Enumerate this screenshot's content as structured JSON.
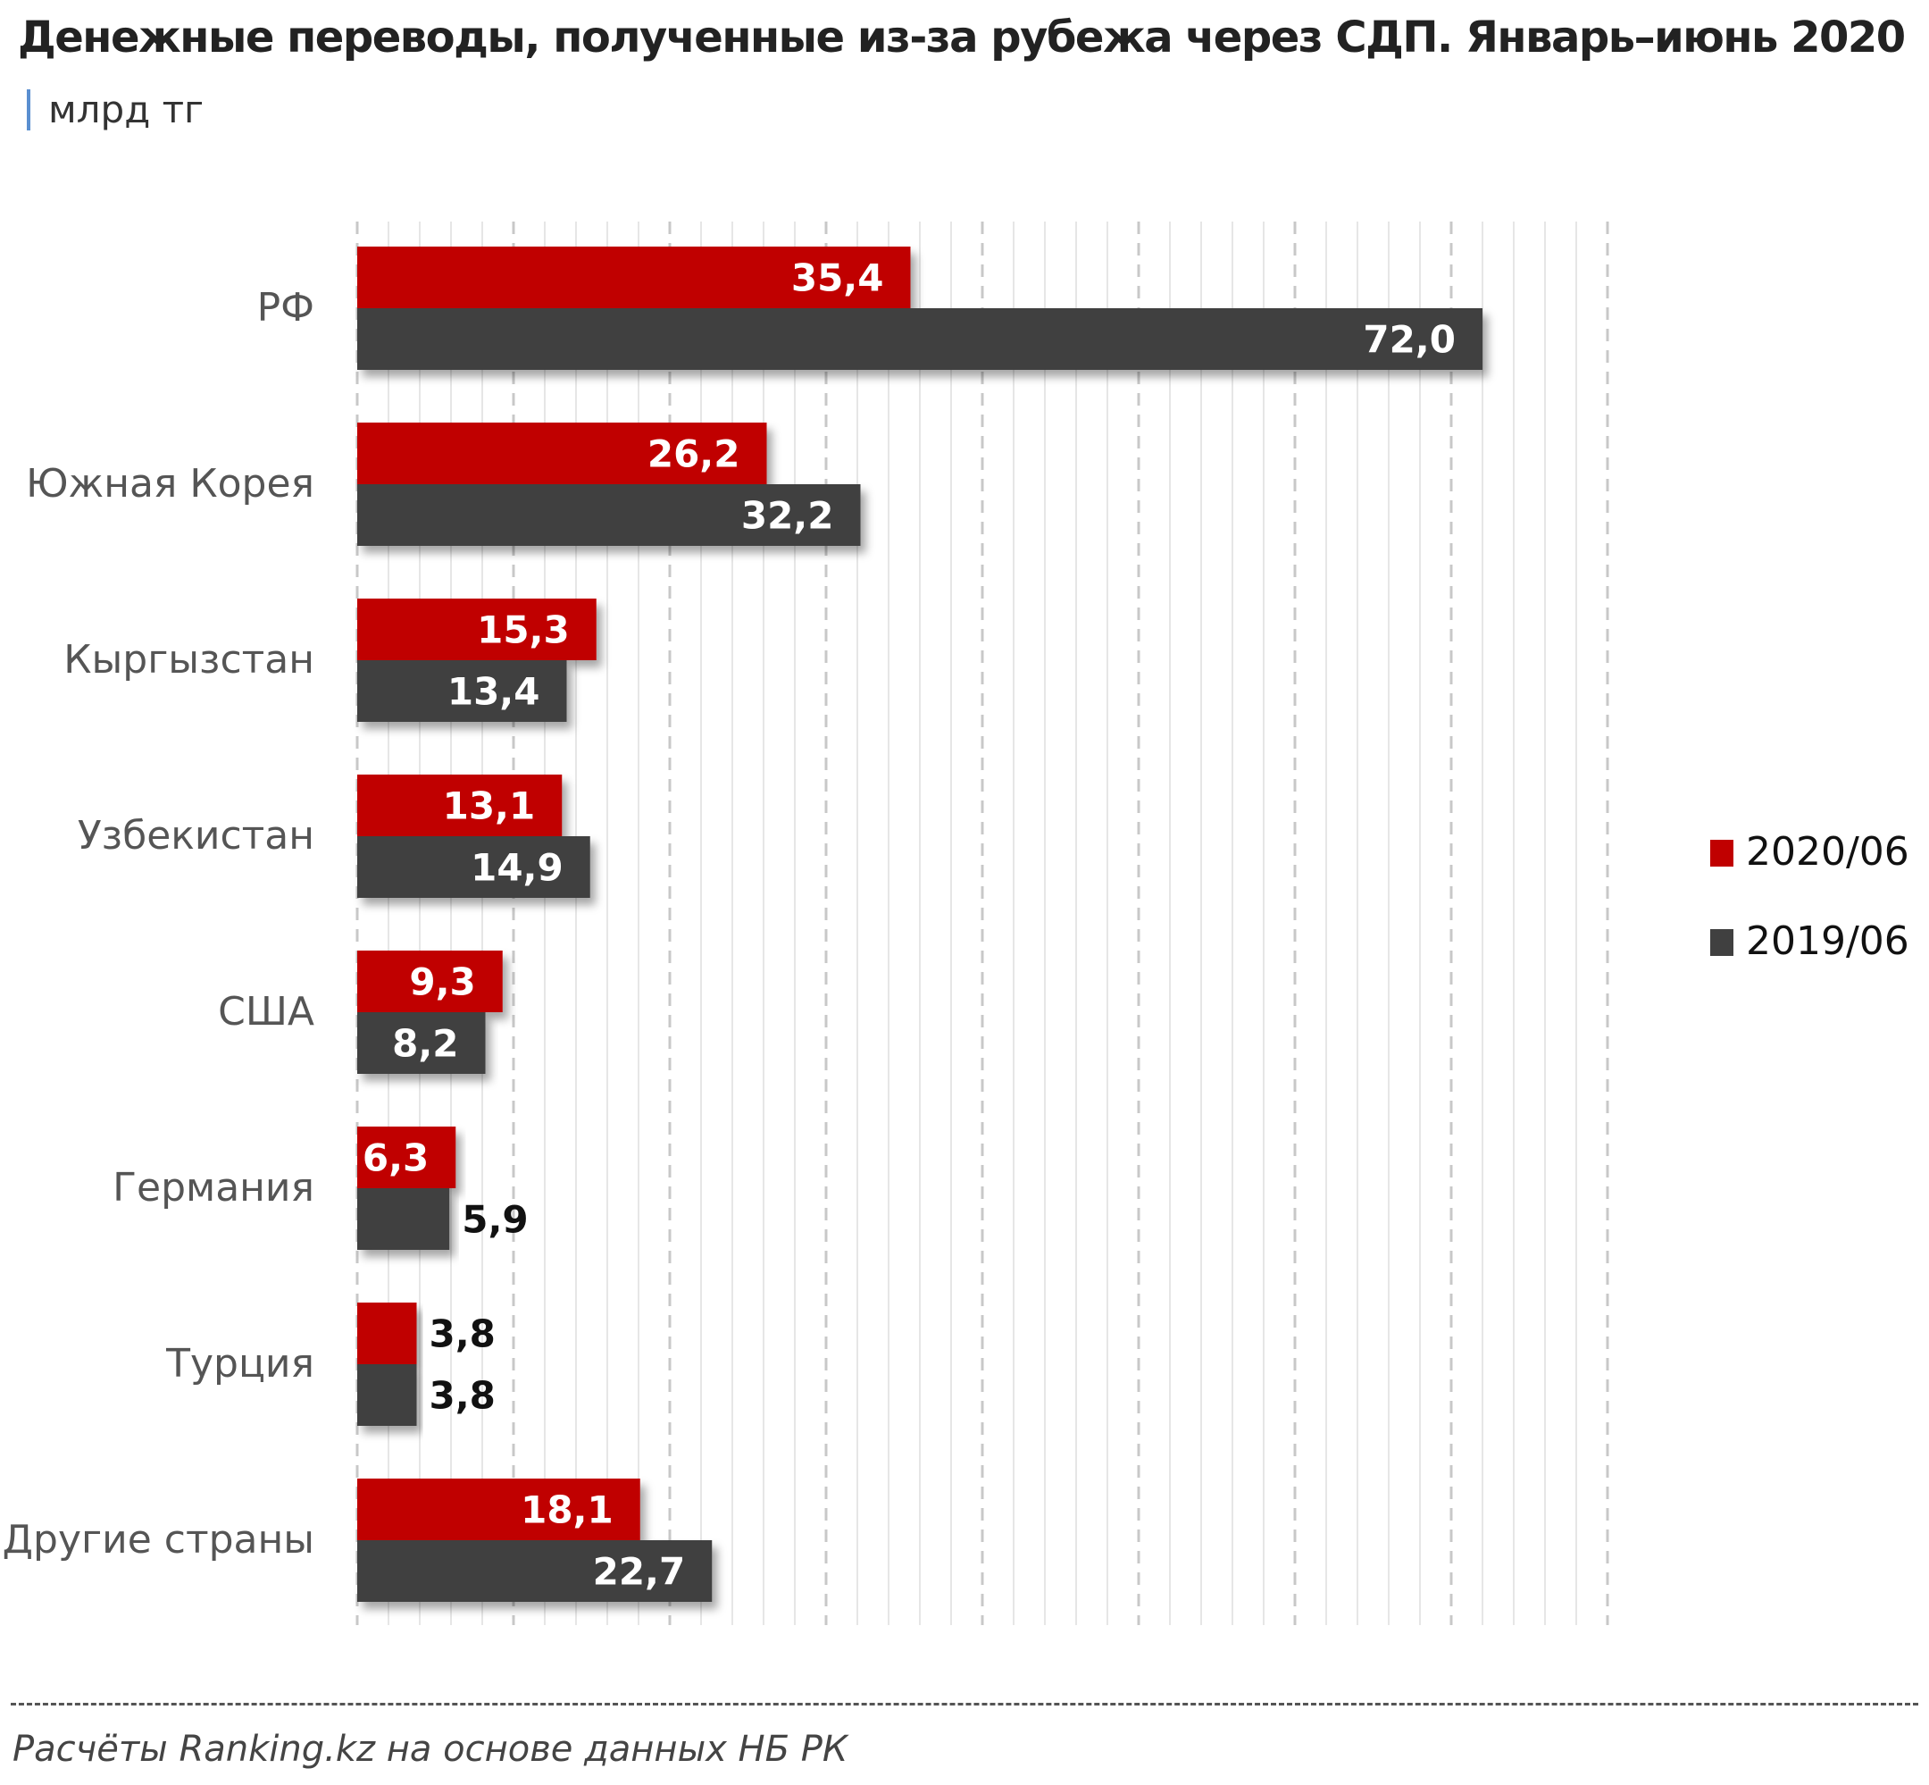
{
  "title": "Денежные переводы, полученные из-за рубежа через СДП. Январь–июнь 2020",
  "subtitle": "млрд тг",
  "footer": "Расчёты Ranking.kz на основе данных НБ РК",
  "chart_data": {
    "type": "bar",
    "orientation": "horizontal",
    "title": "Денежные переводы, полученные из-за рубежа через СДП. Январь–июнь 2020",
    "ylabel": "",
    "xlabel": "",
    "unit": "млрд тг",
    "categories": [
      "РФ",
      "Южная Корея",
      "Кыргызстан",
      "Узбекистан",
      "США",
      "Германия",
      "Турция",
      "Другие страны"
    ],
    "series": [
      {
        "name": "2020/06",
        "color": "#c00000",
        "values": [
          35.4,
          26.2,
          15.3,
          13.1,
          9.3,
          6.3,
          3.8,
          18.1
        ],
        "labels": [
          "35,4",
          "26,2",
          "15,3",
          "13,1",
          "9,3",
          "6,3",
          "3,8",
          "18,1"
        ]
      },
      {
        "name": "2019/06",
        "color": "#404040",
        "values": [
          72.0,
          32.2,
          13.4,
          14.9,
          8.2,
          5.9,
          3.8,
          22.7
        ],
        "labels": [
          "72,0",
          "32,2",
          "13,4",
          "14,9",
          "8,2",
          "5,9",
          "3,8",
          "22,7"
        ]
      }
    ],
    "xlim": [
      0,
      80
    ],
    "grid": true,
    "legend": "right"
  }
}
